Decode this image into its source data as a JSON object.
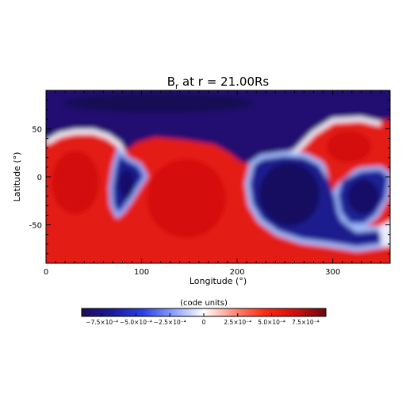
{
  "chart_data": {
    "type": "heatmap",
    "title": "B",
    "title_subscript": "r",
    "title_suffix": " at r = 21.00Rs",
    "xlabel": "Longitude (°)",
    "ylabel": "Latitude (°)",
    "xlim": [
      0,
      360
    ],
    "ylim": [
      -90,
      90
    ],
    "xticks": [
      0,
      100,
      200,
      300
    ],
    "yticks": [
      -50,
      0,
      50
    ],
    "colorbar": {
      "label": "(code units)",
      "range": [
        -0.0009,
        0.0009
      ],
      "colors": [
        "#1e0b5a",
        "#1a1a9c",
        "#2a3fe6",
        "#8aa0ff",
        "#ffffff",
        "#ff8a7a",
        "#ff2a12",
        "#d40c0c",
        "#6a0a14"
      ],
      "ticks": [
        {
          "value": -0.00075,
          "label": "−7.5×10⁻⁴"
        },
        {
          "value": -0.0005,
          "label": "−5.0×10⁻⁴"
        },
        {
          "value": -0.00025,
          "label": "−2.5×10⁻⁴"
        },
        {
          "value": 0,
          "label": "0"
        },
        {
          "value": 0.00025,
          "label": "2.5×10⁻⁴"
        },
        {
          "value": 0.0005,
          "label": "5.0×10⁻⁴"
        },
        {
          "value": 0.00075,
          "label": "7.5×10⁻⁴"
        }
      ]
    },
    "regions": [
      {
        "polarity": "negative",
        "description": "northern polar cap",
        "value": -0.0008
      },
      {
        "polarity": "positive",
        "lon_center": 35,
        "lat_center": 0,
        "value": 0.00065
      },
      {
        "polarity": "negative",
        "lon_center": 82,
        "lat_center": -5,
        "value": -0.0007
      },
      {
        "polarity": "positive",
        "lon_center": 150,
        "lat_center": -5,
        "value": 0.00065
      },
      {
        "polarity": "negative",
        "lon_center": 250,
        "lat_center": -15,
        "value": -0.0008
      },
      {
        "polarity": "positive",
        "lon_center": 330,
        "lat_center": 40,
        "value": 0.0007
      },
      {
        "polarity": "negative",
        "lon_center": 340,
        "lat_center": -20,
        "value": -0.0008
      }
    ]
  }
}
